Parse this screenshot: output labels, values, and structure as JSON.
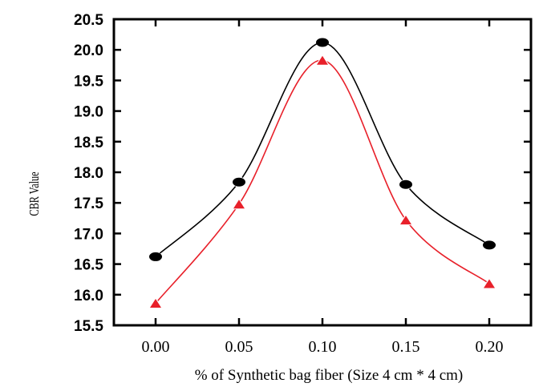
{
  "chart_data": {
    "type": "line",
    "title": "",
    "xlabel": "% of Synthetic bag fiber (Size 4 cm * 4 cm)",
    "ylabel": "CBR Value",
    "x": [
      0.0,
      0.05,
      0.1,
      0.15,
      0.2
    ],
    "x_tick_labels": [
      "0.00",
      "0.05",
      "0.10",
      "0.15",
      "0.20"
    ],
    "xlim": [
      -0.025,
      0.225
    ],
    "ylim": [
      15.5,
      20.5
    ],
    "y_ticks": [
      15.5,
      16.0,
      16.5,
      17.0,
      17.5,
      18.0,
      18.5,
      19.0,
      19.5,
      20.0,
      20.5
    ],
    "y_tick_labels": [
      "15.5",
      "16.0",
      "16.5",
      "17.0",
      "17.5",
      "18.0",
      "18.5",
      "19.0",
      "19.5",
      "20.0",
      "20.5"
    ],
    "grid": false,
    "series": [
      {
        "values": [
          16.62,
          17.84,
          20.12,
          17.8,
          16.81
        ],
        "color": "#000000",
        "marker": "circle"
      },
      {
        "values": [
          15.86,
          17.48,
          19.83,
          17.22,
          16.18
        ],
        "color": "#e8202a",
        "marker": "triangle"
      }
    ]
  }
}
